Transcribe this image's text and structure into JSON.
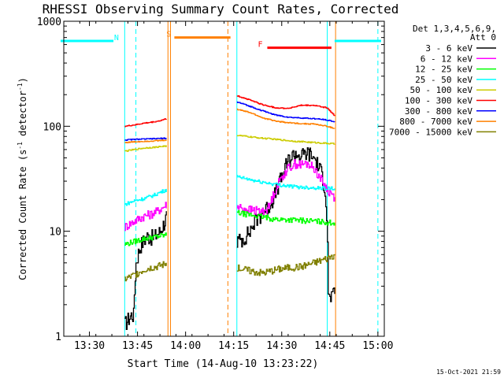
{
  "chart_data": {
    "type": "line",
    "title": "RHESSI Observing Summary Count Rates, Corrected",
    "xlabel": "Start Time (14-Aug-10 13:23:22)",
    "ylabel_main": "Corrected Count Rate (s",
    "ylabel_sup1": "-1",
    "ylabel_mid": " detector",
    "ylabel_sup2": "-1",
    "ylabel_end": ")",
    "x_range_min": [
      802,
      902
    ],
    "y_log_range": [
      1,
      1000
    ],
    "x_ticks": [
      {
        "min": 810,
        "label": "13:30"
      },
      {
        "min": 825,
        "label": "13:45"
      },
      {
        "min": 840,
        "label": "14:00"
      },
      {
        "min": 855,
        "label": "14:15"
      },
      {
        "min": 870,
        "label": "14:30"
      },
      {
        "min": 885,
        "label": "14:45"
      },
      {
        "min": 900,
        "label": "15:00"
      }
    ],
    "y_ticks": [
      {
        "value": 1,
        "label": "1"
      },
      {
        "value": 10,
        "label": "10"
      },
      {
        "value": 100,
        "label": "100"
      },
      {
        "value": 1000,
        "label": "1000"
      }
    ],
    "legend_header_1": "Det 1,3,4,5,6,9,",
    "legend_header_2": "Att 0",
    "legend_position": "right",
    "series": [
      {
        "name": "3 - 6 keV",
        "color": "#000000",
        "seg1": {
          "t": [
            821.0,
            823.0,
            823.8,
            824.5,
            826.0,
            828.0,
            830.0,
            832.0,
            833.5,
            834.0
          ],
          "v": [
            1.3,
            1.6,
            1.6,
            5.0,
            7.5,
            9.0,
            8.7,
            10.0,
            12.5,
            14.0
          ]
        },
        "seg2": {
          "t": [
            856.0,
            858.0,
            860.0,
            862.0,
            864.0,
            866.0,
            868.0,
            870.0,
            872.0,
            874.0,
            876.0,
            878.0,
            880.0,
            882.0,
            883.5,
            884.5,
            886.5
          ],
          "v": [
            8.0,
            8.5,
            10.0,
            13.0,
            15.0,
            17.5,
            23.0,
            33.0,
            47.0,
            55.0,
            52.0,
            56.0,
            50.0,
            38.0,
            25.0,
            2.3,
            2.5
          ]
        }
      },
      {
        "name": "6 - 12 keV",
        "color": "#ff00ff",
        "seg1": {
          "t": [
            821.0,
            823.0,
            825.0,
            827.0,
            829.0,
            831.0,
            833.0,
            834.0
          ],
          "v": [
            11.0,
            12.0,
            13.0,
            14.0,
            14.5,
            15.5,
            17.0,
            18.0
          ]
        },
        "seg2": {
          "t": [
            856.0,
            860.0,
            864.0,
            866.0,
            868.0,
            870.0,
            872.0,
            874.0,
            876.0,
            878.0,
            880.0,
            882.0,
            884.0,
            886.5
          ],
          "v": [
            17.0,
            16.0,
            15.5,
            17.0,
            25.0,
            33.0,
            40.0,
            44.0,
            43.0,
            44.0,
            40.0,
            32.0,
            25.0,
            21.0
          ]
        }
      },
      {
        "name": "12 - 25 keV",
        "color": "#00ff00",
        "seg1": {
          "t": [
            821.0,
            824.0,
            827.0,
            830.0,
            832.0,
            834.0
          ],
          "v": [
            7.5,
            8.0,
            8.5,
            8.8,
            9.0,
            9.2
          ]
        },
        "seg2": {
          "t": [
            856.0,
            862.0,
            868.0,
            874.0,
            880.0,
            886.5
          ],
          "v": [
            15.0,
            14.0,
            13.0,
            12.8,
            12.5,
            12.0
          ]
        }
      },
      {
        "name": "25 - 50 keV",
        "color": "#00ffff",
        "seg1": {
          "t": [
            821.0,
            824.0,
            827.0,
            830.0,
            832.0,
            834.0
          ],
          "v": [
            18.0,
            19.5,
            20.5,
            22.0,
            23.5,
            25.0
          ]
        },
        "seg2": {
          "t": [
            856.0,
            862.0,
            868.0,
            874.0,
            880.0,
            886.5
          ],
          "v": [
            33.0,
            30.0,
            28.0,
            26.5,
            26.0,
            25.5
          ]
        }
      },
      {
        "name": "50 - 100 keV",
        "color": "#cccc00",
        "seg1": {
          "t": [
            821.0,
            824.0,
            827.0,
            830.0,
            832.0,
            834.0
          ],
          "v": [
            58.0,
            60.0,
            62.0,
            63.0,
            64.0,
            65.0
          ]
        },
        "seg2": {
          "t": [
            856.0,
            862.0,
            868.0,
            874.0,
            880.0,
            886.5
          ],
          "v": [
            82.0,
            78.0,
            75.0,
            72.0,
            70.0,
            68.0
          ]
        }
      },
      {
        "name": "100 - 300 keV",
        "color": "#ff0000",
        "seg1": {
          "t": [
            821.0,
            824.0,
            827.0,
            830.0,
            832.0,
            834.0
          ],
          "v": [
            100.0,
            103.0,
            107.0,
            110.0,
            113.0,
            118.0
          ]
        },
        "seg2": {
          "t": [
            856.0,
            860.0,
            864.0,
            868.0,
            872.0,
            876.0,
            880.0,
            884.0,
            886.5
          ],
          "v": [
            195.0,
            178.0,
            160.0,
            150.0,
            148.0,
            158.0,
            158.0,
            150.0,
            125.0
          ]
        }
      },
      {
        "name": "300 - 800 keV",
        "color": "#0000ff",
        "seg1": {
          "t": [
            821.0,
            824.0,
            827.0,
            830.0,
            832.0,
            834.0
          ],
          "v": [
            74.0,
            75.0,
            75.5,
            76.0,
            76.5,
            77.0
          ]
        },
        "seg2": {
          "t": [
            856.0,
            860.0,
            864.0,
            868.0,
            872.0,
            876.0,
            880.0,
            884.0,
            886.5
          ],
          "v": [
            170.0,
            155.0,
            140.0,
            128.0,
            122.0,
            120.0,
            118.0,
            115.0,
            110.0
          ]
        }
      },
      {
        "name": "800 - 7000 keV",
        "color": "#ff8000",
        "seg1": {
          "t": [
            821.0,
            824.0,
            827.0,
            830.0,
            832.0,
            834.0
          ],
          "v": [
            70.0,
            71.0,
            72.0,
            72.5,
            73.0,
            74.0
          ]
        },
        "seg2": {
          "t": [
            856.0,
            860.0,
            864.0,
            868.0,
            872.0,
            876.0,
            880.0,
            884.0,
            886.5
          ],
          "v": [
            145.0,
            135.0,
            120.0,
            112.0,
            108.0,
            106.0,
            105.0,
            100.0,
            95.0
          ]
        }
      },
      {
        "name": "7000 - 15000 keV",
        "color": "#808000",
        "seg1": {
          "t": [
            821.0,
            823.0,
            825.0,
            827.0,
            829.0,
            831.0,
            833.0,
            834.0
          ],
          "v": [
            3.5,
            3.7,
            4.0,
            4.3,
            4.5,
            4.6,
            4.8,
            5.0
          ]
        },
        "seg2": {
          "t": [
            856.0,
            860.0,
            864.0,
            868.0,
            872.0,
            876.0,
            880.0,
            884.0,
            886.5
          ],
          "v": [
            4.5,
            4.2,
            4.0,
            4.3,
            4.5,
            4.6,
            5.0,
            5.5,
            6.0
          ]
        }
      }
    ],
    "interval_bars": [
      {
        "label": "N",
        "color": "#00ffff",
        "ranges": [
          [
            801.0,
            817.5
          ],
          [
            886.5,
            901.0
          ]
        ],
        "level": 650
      },
      {
        "label": "S",
        "color": "#ff8000",
        "ranges": [
          [
            836.5,
            854.0
          ]
        ],
        "level": 700
      },
      {
        "label": "F",
        "color": "#ff0000",
        "ranges": [
          [
            865.5,
            885.5
          ]
        ],
        "level": 560
      }
    ],
    "vertical_markers": [
      {
        "min": 821.0,
        "color": "#00ffff",
        "style": "solid"
      },
      {
        "min": 824.5,
        "color": "#00ffff",
        "style": "dashed"
      },
      {
        "min": 834.5,
        "color": "#ff8000",
        "style": "solid"
      },
      {
        "min": 835.3,
        "color": "#ff8000",
        "style": "solid"
      },
      {
        "min": 853.2,
        "color": "#ff8000",
        "style": "dashed"
      },
      {
        "min": 856.0,
        "color": "#00ffff",
        "style": "solid"
      },
      {
        "min": 884.2,
        "color": "#00ffff",
        "style": "solid"
      },
      {
        "min": 886.8,
        "color": "#ff8000",
        "style": "solid"
      },
      {
        "min": 900.0,
        "color": "#00ffff",
        "style": "dashed"
      }
    ]
  },
  "footer_timestamp": "15-Oct-2021 21:59"
}
